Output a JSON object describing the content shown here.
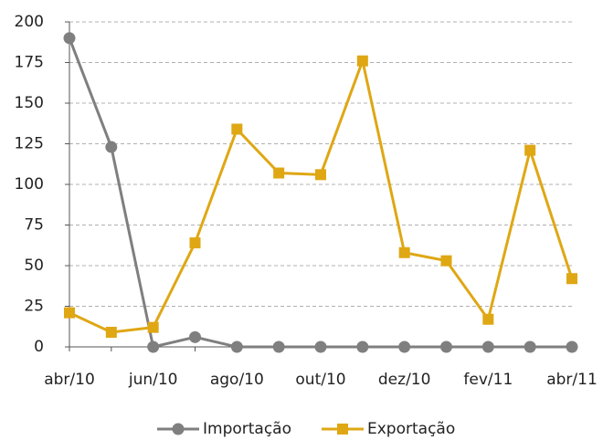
{
  "chart_data": {
    "type": "line",
    "categories": [
      "abr/10",
      null,
      "jun/10",
      null,
      "ago/10",
      null,
      "out/10",
      null,
      "dez/10",
      null,
      "fev/11",
      null,
      "abr/11"
    ],
    "series": [
      {
        "name": "Importação",
        "color": "#7f7f7f",
        "marker": "circle",
        "values": [
          190,
          123,
          0,
          6,
          0,
          0,
          0,
          0,
          0,
          0,
          0,
          0,
          0
        ]
      },
      {
        "name": "Exportação",
        "color": "#dfa714",
        "marker": "square",
        "values": [
          21,
          9,
          12,
          64,
          134,
          107,
          106,
          176,
          58,
          53,
          17,
          121,
          42
        ]
      }
    ],
    "ylim": [
      0,
      200
    ],
    "yticks": [
      0,
      25,
      50,
      75,
      100,
      125,
      150,
      175,
      200
    ],
    "grid": true,
    "legend": "bottom"
  }
}
